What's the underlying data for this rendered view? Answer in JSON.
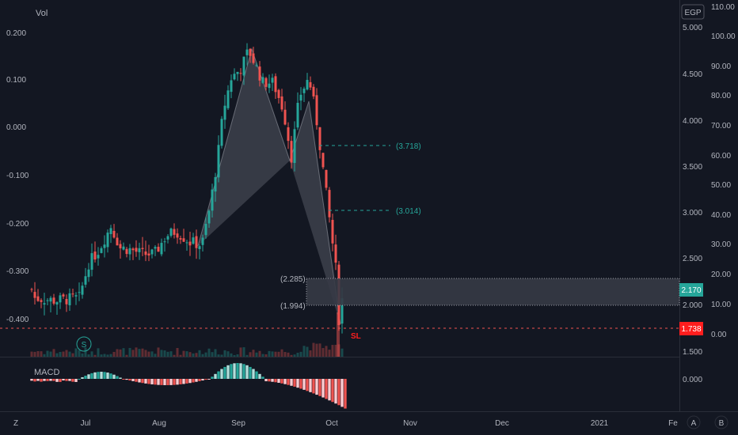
{
  "colors": {
    "background": "#131722",
    "up": "#26a69a",
    "down": "#ef5350",
    "pattern_fill": "#9598a1",
    "target": "#26a69a",
    "stop": "#ff1e1e"
  },
  "chart": {
    "vol_label": "Vol",
    "currency_label": "EGP",
    "macd_label": "MACD",
    "s_marker": "S",
    "sl_label": "SL",
    "left_axis_ticks": [
      "0.200",
      "0.100",
      "0.000",
      "-0.100",
      "-0.200",
      "-0.300",
      "-0.400"
    ],
    "right_price_ticks": [
      "5.000",
      "4.500",
      "4.000",
      "3.500",
      "3.000",
      "2.500",
      "2.000",
      "1.500"
    ],
    "right_volume_ticks": [
      "110.00",
      "100.00",
      "90.00",
      "80.00",
      "70.00",
      "60.00",
      "50.00",
      "40.00",
      "30.00",
      "20.00",
      "10.00",
      "0.00"
    ],
    "macd_tick": "0.000",
    "x_labels": [
      "Jul",
      "Aug",
      "Sep",
      "Oct",
      "Nov",
      "Dec",
      "2021",
      "Fe"
    ],
    "targets": [
      {
        "label": "(3.718)",
        "price": 3.718
      },
      {
        "label": "(3.014)",
        "price": 3.014
      }
    ],
    "zone": {
      "top_label": "(2.285)",
      "bottom_label": "(1.994)",
      "top": 2.285,
      "bottom": 1.994
    },
    "current_price": "2.170",
    "stop_price": "1.738",
    "bottom_left_icon": "Z",
    "bottom_right_icons": [
      "A",
      "B"
    ]
  },
  "chart_data": {
    "type": "candlestick",
    "currency": "EGP",
    "x_axis": [
      "Jul",
      "Aug",
      "Sep",
      "Oct",
      "Nov",
      "Dec",
      "2021",
      "Fe"
    ],
    "price_axis": [
      1.5,
      5.0
    ],
    "pattern_points_price": [
      2.62,
      4.05,
      3.58,
      4.0,
      1.78
    ],
    "targets": [
      3.718,
      3.014
    ],
    "zone": [
      1.994,
      2.285
    ],
    "last": 2.17,
    "stop": 1.738
  }
}
